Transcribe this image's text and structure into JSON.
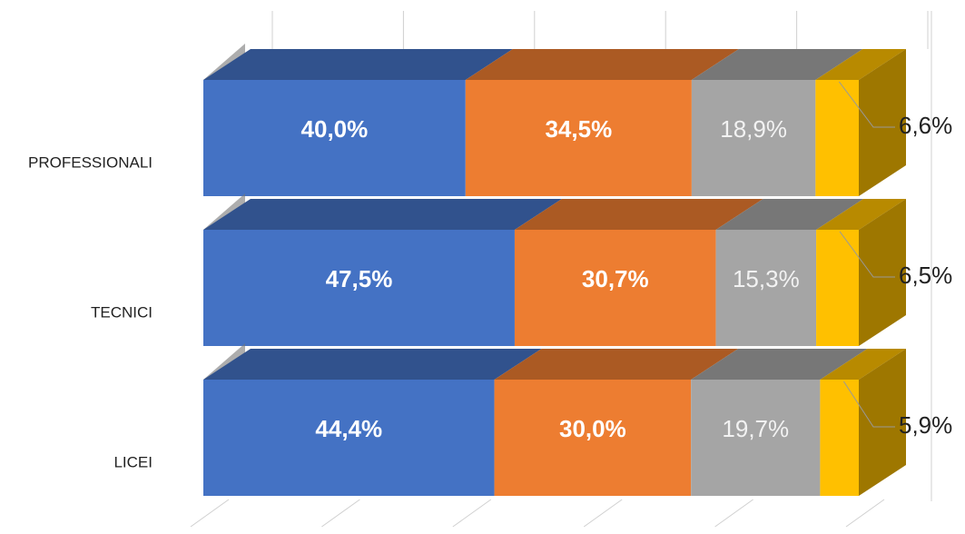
{
  "chart_data": {
    "type": "bar3d_stacked_horizontal",
    "categories": [
      "PROFESSIONALI",
      "TECNICI",
      "LICEI"
    ],
    "series": [
      {
        "color": "#4472c4",
        "values": [
          40.0,
          47.5,
          44.4
        ],
        "value_labels": [
          "40,0%",
          "47,5%",
          "44,4%"
        ]
      },
      {
        "color": "#ed7d31",
        "values": [
          34.5,
          30.7,
          30.0
        ],
        "value_labels": [
          "34,5%",
          "30,7%",
          "30,0%"
        ]
      },
      {
        "color": "#a5a5a5",
        "values": [
          18.9,
          15.3,
          19.7
        ],
        "value_labels": [
          "18,9%",
          "15,3%",
          "19,7%"
        ]
      },
      {
        "color": "#ffc000",
        "values": [
          6.6,
          6.5,
          5.9
        ],
        "value_labels": [
          "6,6%",
          "6,5%",
          "5,9%"
        ]
      }
    ],
    "xlim": [
      0,
      100
    ],
    "xticks": [
      0,
      20,
      40,
      60,
      80,
      100
    ],
    "grid": true
  }
}
